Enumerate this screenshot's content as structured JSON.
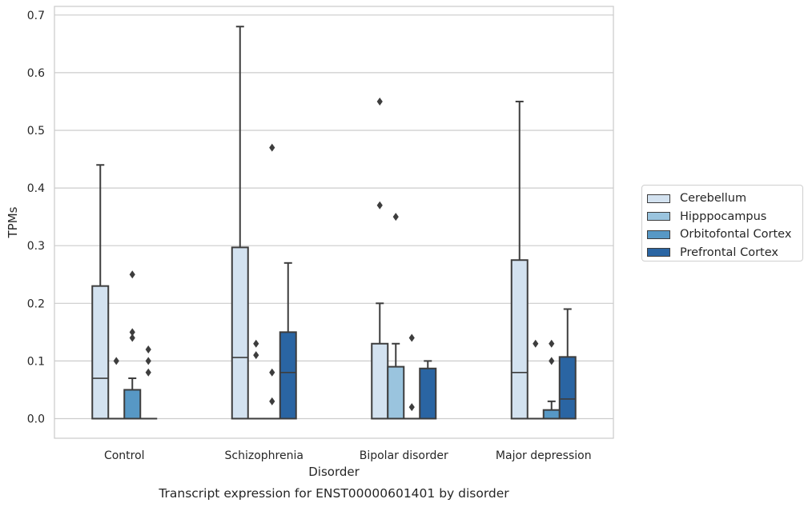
{
  "chart_data": {
    "type": "box",
    "title": "Transcript expression for ENST00000601401 by disorder",
    "xlabel": "Disorder",
    "ylabel": "TPMs",
    "ylim": [
      -0.034,
      0.715
    ],
    "yticks": [
      0.0,
      0.1,
      0.2,
      0.3,
      0.4,
      0.5,
      0.6,
      0.7
    ],
    "ytick_labels": [
      "0.0",
      "0.1",
      "0.2",
      "0.3",
      "0.4",
      "0.5",
      "0.6",
      "0.7"
    ],
    "grid": true,
    "legend_position": "right",
    "categories": [
      "Control",
      "Schizophrenia",
      "Bipolar disorder",
      "Major depression"
    ],
    "series": [
      {
        "name": "Cerebellum",
        "color": "#d3e2f0",
        "boxes": [
          {
            "q1": 0.0,
            "median": 0.07,
            "q3": 0.23,
            "whislo": 0.0,
            "whishi": 0.44,
            "fliers": []
          },
          {
            "q1": 0.0,
            "median": 0.106,
            "q3": 0.297,
            "whislo": 0.0,
            "whishi": 0.68,
            "fliers": []
          },
          {
            "q1": 0.0,
            "median": 0.0,
            "q3": 0.13,
            "whislo": 0.0,
            "whishi": 0.2,
            "fliers": [
              0.37,
              0.55
            ]
          },
          {
            "q1": 0.0,
            "median": 0.08,
            "q3": 0.275,
            "whislo": 0.0,
            "whishi": 0.55,
            "fliers": []
          }
        ]
      },
      {
        "name": "Hipppocampus",
        "color": "#9ac4de",
        "boxes": [
          {
            "q1": 0.0,
            "median": 0.0,
            "q3": 0.0,
            "whislo": 0.0,
            "whishi": 0.0,
            "fliers": [
              0.1
            ]
          },
          {
            "q1": 0.0,
            "median": 0.0,
            "q3": 0.0,
            "whislo": 0.0,
            "whishi": 0.0,
            "fliers": [
              0.11,
              0.13
            ]
          },
          {
            "q1": 0.0,
            "median": 0.0,
            "q3": 0.09,
            "whislo": 0.0,
            "whishi": 0.13,
            "fliers": [
              0.35
            ]
          },
          {
            "q1": 0.0,
            "median": 0.0,
            "q3": 0.0,
            "whislo": 0.0,
            "whishi": 0.0,
            "fliers": [
              0.13
            ]
          }
        ]
      },
      {
        "name": "Orbitofontal Cortex",
        "color": "#5798c5",
        "boxes": [
          {
            "q1": 0.0,
            "median": 0.0,
            "q3": 0.05,
            "whislo": 0.0,
            "whishi": 0.07,
            "fliers": [
              0.14,
              0.15,
              0.25
            ]
          },
          {
            "q1": 0.0,
            "median": 0.0,
            "q3": 0.0,
            "whislo": 0.0,
            "whishi": 0.0,
            "fliers": [
              0.03,
              0.08,
              0.47
            ]
          },
          {
            "q1": 0.0,
            "median": 0.0,
            "q3": 0.0,
            "whislo": 0.0,
            "whishi": 0.0,
            "fliers": [
              0.02,
              0.14
            ]
          },
          {
            "q1": 0.0,
            "median": 0.0,
            "q3": 0.015,
            "whislo": 0.0,
            "whishi": 0.03,
            "fliers": [
              0.1,
              0.13
            ]
          }
        ]
      },
      {
        "name": "Prefrontal Cortex",
        "color": "#2a65a3",
        "boxes": [
          {
            "q1": 0.0,
            "median": 0.0,
            "q3": 0.0,
            "whislo": 0.0,
            "whishi": 0.0,
            "fliers": [
              0.08,
              0.1,
              0.12
            ]
          },
          {
            "q1": 0.0,
            "median": 0.08,
            "q3": 0.15,
            "whislo": 0.0,
            "whishi": 0.27,
            "fliers": []
          },
          {
            "q1": 0.0,
            "median": 0.0,
            "q3": 0.087,
            "whislo": 0.0,
            "whishi": 0.1,
            "fliers": []
          },
          {
            "q1": 0.0,
            "median": 0.034,
            "q3": 0.107,
            "whislo": 0.0,
            "whishi": 0.19,
            "fliers": []
          }
        ]
      }
    ]
  }
}
